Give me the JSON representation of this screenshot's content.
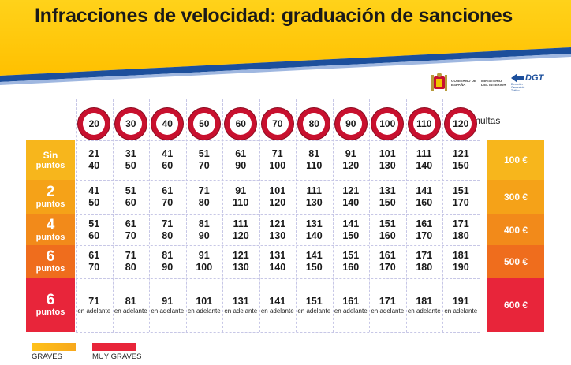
{
  "title": "Infracciones de velocidad: graduación de sanciones",
  "logos": {
    "ministerio_line1": "GOBIERNO DE ESPAÑA",
    "ministerio_line2": "MINISTERIO DEL INTERIOR",
    "dgt": "DGT",
    "dgt_sub": "Dirección General de Tráfico"
  },
  "speed_limits": [
    "20",
    "30",
    "40",
    "50",
    "60",
    "70",
    "80",
    "90",
    "100",
    "110",
    "120"
  ],
  "multas_header": "multas",
  "rows": [
    {
      "label_top": "Sin",
      "label_bottom": "puntos",
      "fine": "100 €",
      "color": "#f7b61c",
      "cells": [
        [
          "21",
          "40"
        ],
        [
          "31",
          "50"
        ],
        [
          "41",
          "60"
        ],
        [
          "51",
          "70"
        ],
        [
          "61",
          "90"
        ],
        [
          "71",
          "100"
        ],
        [
          "81",
          "110"
        ],
        [
          "91",
          "120"
        ],
        [
          "101",
          "130"
        ],
        [
          "111",
          "140"
        ],
        [
          "121",
          "150"
        ]
      ]
    },
    {
      "label_top": "2",
      "label_bottom": "puntos",
      "fine": "300 €",
      "color": "#f5a218",
      "cells": [
        [
          "41",
          "50"
        ],
        [
          "51",
          "60"
        ],
        [
          "61",
          "70"
        ],
        [
          "71",
          "80"
        ],
        [
          "91",
          "110"
        ],
        [
          "101",
          "120"
        ],
        [
          "111",
          "130"
        ],
        [
          "121",
          "140"
        ],
        [
          "131",
          "150"
        ],
        [
          "141",
          "160"
        ],
        [
          "151",
          "170"
        ]
      ]
    },
    {
      "label_top": "4",
      "label_bottom": "puntos",
      "fine": "400 €",
      "color": "#f28a1a",
      "cells": [
        [
          "51",
          "60"
        ],
        [
          "61",
          "70"
        ],
        [
          "71",
          "80"
        ],
        [
          "81",
          "90"
        ],
        [
          "111",
          "120"
        ],
        [
          "121",
          "130"
        ],
        [
          "131",
          "140"
        ],
        [
          "141",
          "150"
        ],
        [
          "151",
          "160"
        ],
        [
          "161",
          "170"
        ],
        [
          "171",
          "180"
        ]
      ]
    },
    {
      "label_top": "6",
      "label_bottom": "puntos",
      "fine": "500 €",
      "color": "#ef6d1d",
      "cells": [
        [
          "61",
          "70"
        ],
        [
          "71",
          "80"
        ],
        [
          "81",
          "90"
        ],
        [
          "91",
          "100"
        ],
        [
          "121",
          "130"
        ],
        [
          "131",
          "140"
        ],
        [
          "141",
          "150"
        ],
        [
          "151",
          "160"
        ],
        [
          "161",
          "170"
        ],
        [
          "171",
          "180"
        ],
        [
          "181",
          "190"
        ]
      ]
    },
    {
      "label_top": "6",
      "label_bottom": "puntos",
      "fine": "600 €",
      "color": "#e8253a",
      "cells": [
        [
          "71",
          "en adelante"
        ],
        [
          "81",
          "en adelante"
        ],
        [
          "91",
          "en adelante"
        ],
        [
          "101",
          "en adelante"
        ],
        [
          "131",
          "en adelante"
        ],
        [
          "141",
          "en adelante"
        ],
        [
          "151",
          "en adelante"
        ],
        [
          "161",
          "en adelante"
        ],
        [
          "171",
          "en adelante"
        ],
        [
          "181",
          "en adelante"
        ],
        [
          "191",
          "en adelante"
        ]
      ]
    }
  ],
  "legend": {
    "graves": "GRAVES",
    "muy_graves": "MUY GRAVES",
    "graves_color": "#f7a81c",
    "muy_graves_color": "#e8253a"
  }
}
